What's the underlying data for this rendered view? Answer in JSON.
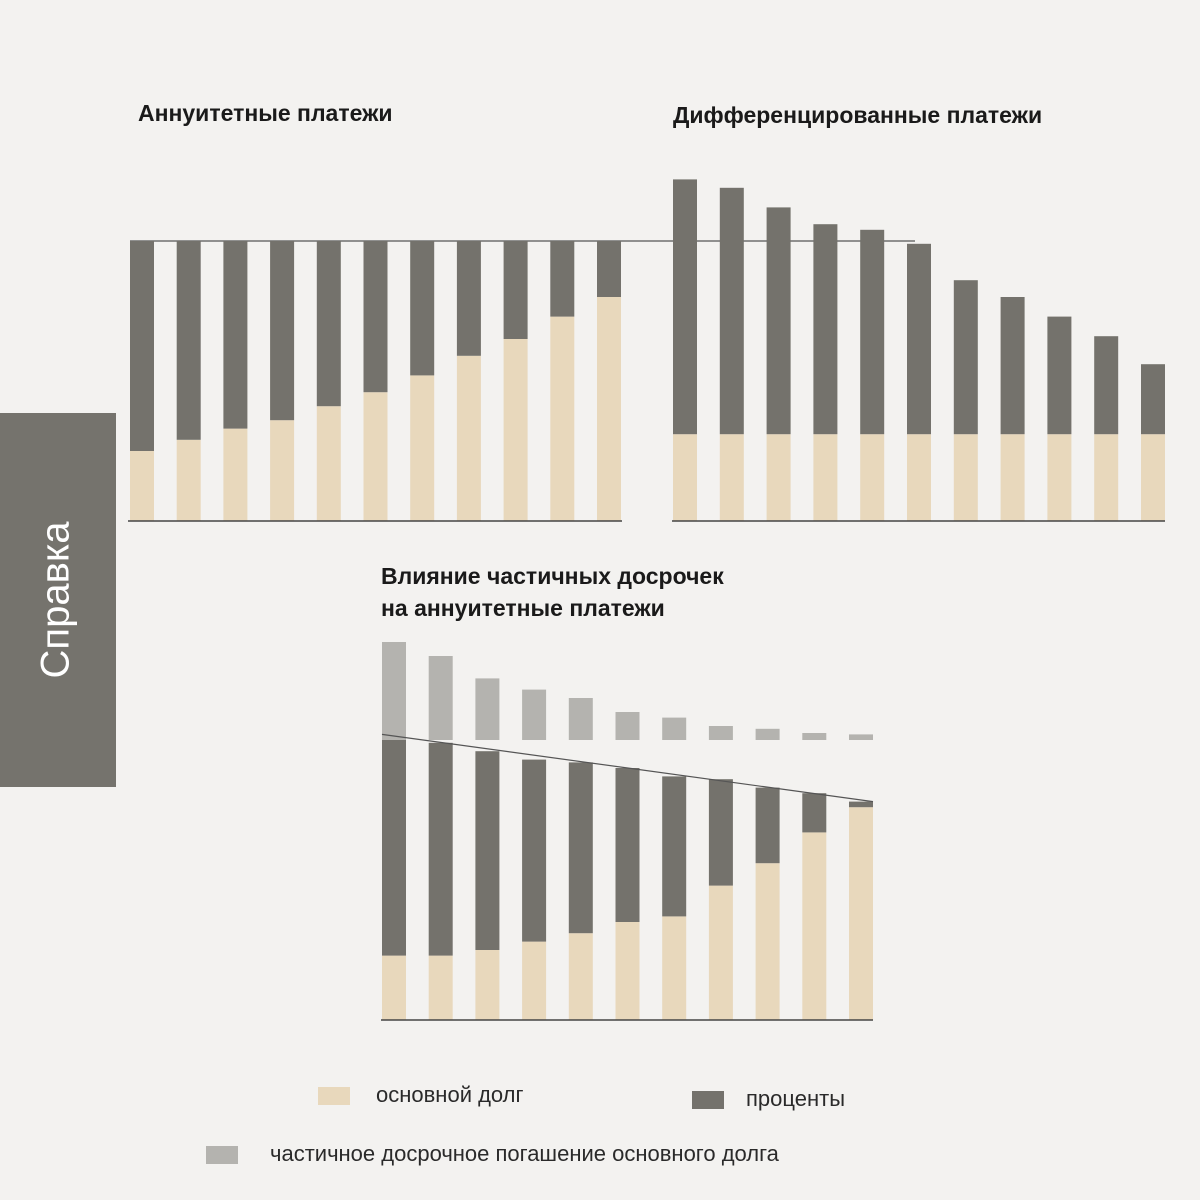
{
  "sidebar": "Справка",
  "legend": [
    {
      "name": "основной долг",
      "color": "#e8d8bc"
    },
    {
      "name": "проценты",
      "color": "#74726c"
    },
    {
      "name": "частичное досрочное погашение основного долга",
      "color": "#b4b3af"
    }
  ],
  "chart_data": [
    {
      "type": "bar",
      "stacked": true,
      "title": [
        "Аннуитетные платежи"
      ],
      "ylim": [
        0,
        100
      ],
      "payment": 100,
      "series": [
        {
          "color": "#e8d8bc",
          "values": [
            25,
            29,
            33,
            36,
            41,
            46,
            52,
            59,
            65,
            73,
            80
          ]
        },
        {
          "color": "#74726c",
          "values": [
            75,
            71,
            67,
            64,
            59,
            54,
            48,
            41,
            35,
            27,
            20
          ]
        }
      ]
    },
    {
      "type": "bar",
      "stacked": true,
      "title": [
        "Дифференцированные платежи"
      ],
      "ylim": [
        0,
        122
      ],
      "series": [
        {
          "color": "#e8d8bc",
          "values": [
            31,
            31,
            31,
            31,
            31,
            31,
            31,
            31,
            31,
            31,
            31
          ]
        },
        {
          "color": "#74726c",
          "values": [
            91,
            88,
            81,
            75,
            73,
            68,
            55,
            49,
            42,
            35,
            25
          ]
        }
      ]
    },
    {
      "type": "bar",
      "stacked": true,
      "title": [
        "Влияние частичных досрочек",
        "на аннуитетные платежи"
      ],
      "ylim": [
        0,
        135
      ],
      "payment": 100,
      "series": [
        {
          "color": "#e8d8bc",
          "values": [
            23,
            23,
            25,
            28,
            31,
            35,
            37,
            48,
            56,
            67,
            76
          ]
        },
        {
          "color": "#74726c",
          "values": [
            79,
            76,
            71,
            65,
            61,
            55,
            50,
            38,
            27,
            14,
            2
          ]
        },
        {
          "color": "#b4b3af",
          "values": [
            35,
            30,
            22,
            18,
            15,
            10,
            8,
            5,
            4,
            2.5,
            2
          ],
          "floating": true
        }
      ]
    }
  ]
}
